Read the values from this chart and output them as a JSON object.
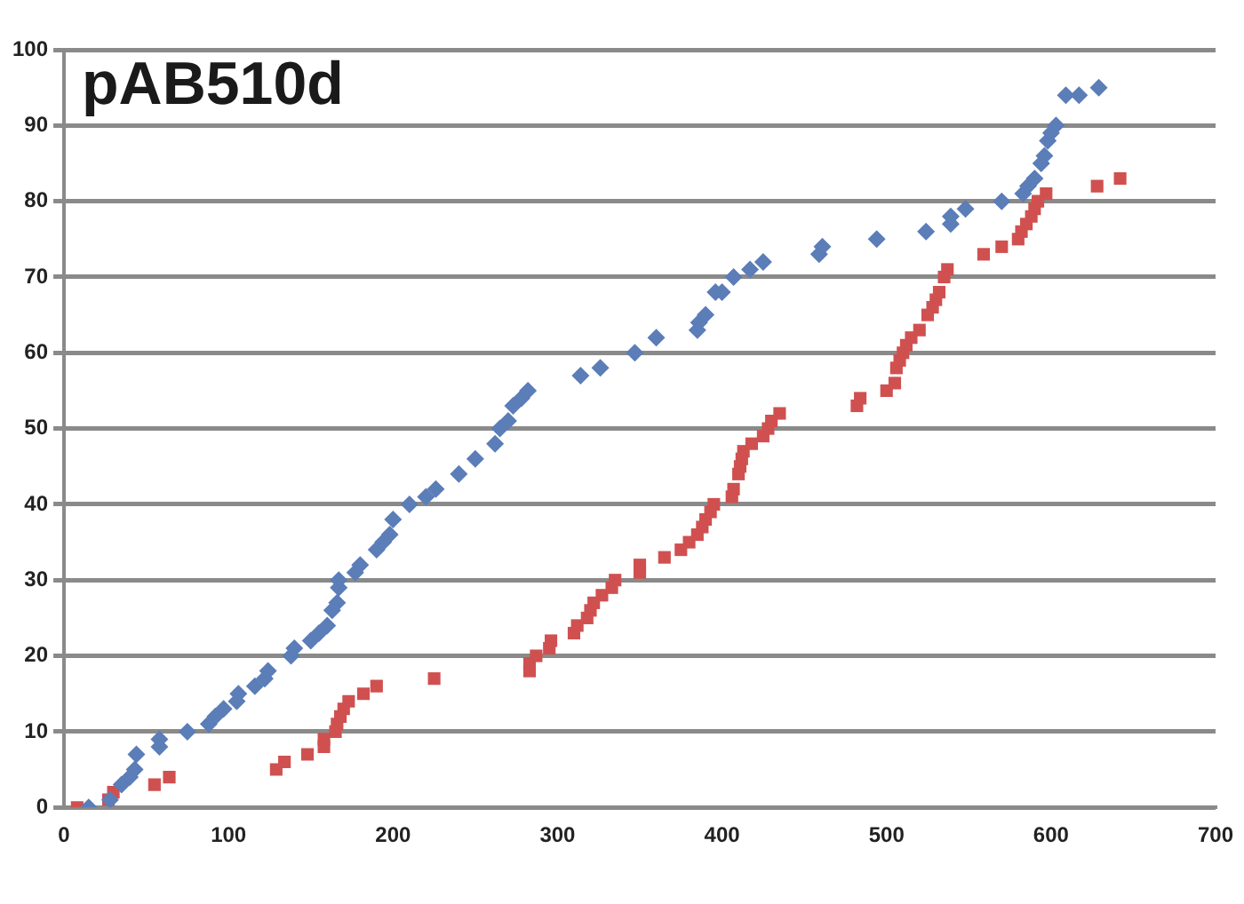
{
  "chart_data": {
    "type": "scatter",
    "title": "pAB510d",
    "xlim": [
      0,
      700
    ],
    "xticks": [
      0,
      100,
      200,
      300,
      400,
      500,
      600,
      700
    ],
    "ylim": [
      0,
      100
    ],
    "yticks": [
      0,
      10,
      20,
      30,
      40,
      50,
      60,
      70,
      80,
      90,
      100
    ],
    "grid": "y",
    "legend": false,
    "series": [
      {
        "color": "#5b7db8",
        "marker": "diamond",
        "x": [
          15,
          28,
          35,
          40,
          43,
          44,
          58,
          58,
          75,
          88,
          92,
          97,
          105,
          106,
          116,
          122,
          124,
          138,
          140,
          150,
          155,
          160,
          163,
          166,
          167,
          167,
          177,
          180,
          190,
          194,
          198,
          200,
          210,
          220,
          226,
          240,
          250,
          262,
          265,
          270,
          273,
          278,
          282,
          314,
          326,
          347,
          360,
          385,
          386,
          390,
          396,
          400,
          407,
          417,
          425,
          459,
          461,
          494,
          524,
          539,
          539,
          548,
          570,
          583,
          586,
          590,
          594,
          596,
          598,
          600,
          603,
          609,
          617,
          629
        ],
        "values": [
          0,
          1,
          3,
          4,
          5,
          7,
          8,
          9,
          10,
          11,
          12,
          13,
          14,
          15,
          16,
          17,
          18,
          20,
          21,
          22,
          23,
          24,
          26,
          27,
          29,
          30,
          31,
          32,
          34,
          35,
          36,
          38,
          40,
          41,
          42,
          44,
          46,
          48,
          50,
          51,
          53,
          54,
          55,
          57,
          58,
          60,
          62,
          63,
          64,
          65,
          68,
          68,
          70,
          71,
          72,
          73,
          74,
          75,
          76,
          77,
          78,
          79,
          80,
          81,
          82,
          83,
          85,
          86,
          88,
          89,
          90,
          94,
          94,
          95
        ]
      },
      {
        "color": "#d05050",
        "marker": "square",
        "x": [
          8,
          27,
          30,
          55,
          64,
          129,
          134,
          148,
          158,
          158,
          165,
          166,
          168,
          170,
          173,
          182,
          190,
          225,
          283,
          283,
          287,
          295,
          296,
          310,
          312,
          318,
          320,
          322,
          327,
          333,
          335,
          350,
          350,
          365,
          375,
          380,
          385,
          388,
          390,
          393,
          395,
          406,
          407,
          410,
          411,
          412,
          413,
          418,
          425,
          428,
          430,
          435,
          482,
          484,
          500,
          505,
          506,
          508,
          510,
          512,
          515,
          520,
          525,
          528,
          530,
          532,
          535,
          537,
          559,
          570,
          580,
          582,
          585,
          588,
          590,
          592,
          597,
          628,
          642
        ],
        "values": [
          0,
          1,
          2,
          3,
          4,
          5,
          6,
          7,
          8,
          9,
          10,
          11,
          12,
          13,
          14,
          15,
          16,
          17,
          18,
          19,
          20,
          21,
          22,
          23,
          24,
          25,
          26,
          27,
          28,
          29,
          30,
          31,
          32,
          33,
          34,
          35,
          36,
          37,
          38,
          39,
          40,
          41,
          42,
          44,
          45,
          46,
          47,
          48,
          49,
          50,
          51,
          52,
          53,
          54,
          55,
          56,
          58,
          59,
          60,
          61,
          62,
          63,
          65,
          66,
          67,
          68,
          70,
          71,
          73,
          74,
          75,
          76,
          77,
          78,
          79,
          80,
          81,
          82,
          83
        ]
      }
    ]
  }
}
